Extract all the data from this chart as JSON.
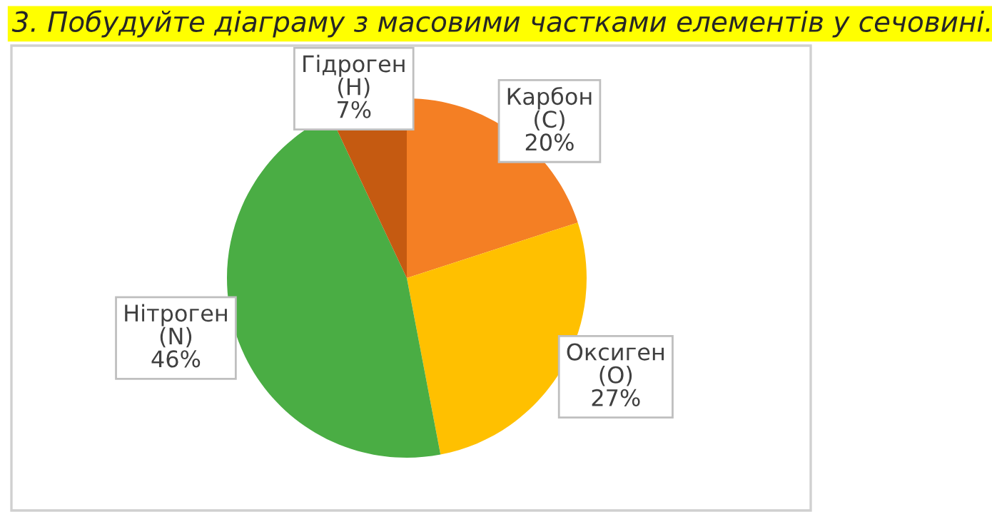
{
  "chart_data": {
    "type": "pie",
    "title": "3. Побудуйте діаграму з масовими частками елементів у сечовині.",
    "categories": [
      "Карбон (C)",
      "Оксиген (O)",
      "Нітроген (N)",
      "Гідроген (H)"
    ],
    "values": [
      20,
      27,
      46,
      7
    ],
    "value_labels": [
      "20%",
      "27%",
      "46%",
      "7%"
    ],
    "colors": [
      "#f47f24",
      "#ffc000",
      "#4aad44",
      "#c55a11"
    ],
    "legend": false
  }
}
